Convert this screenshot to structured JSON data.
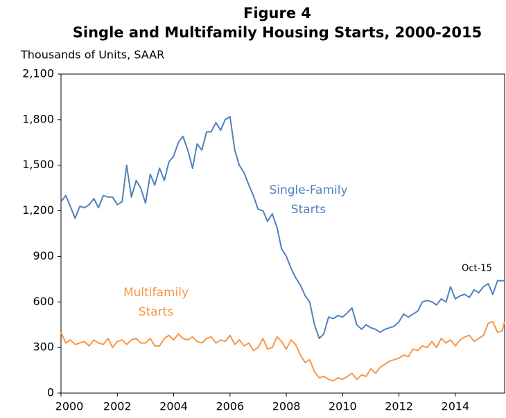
{
  "chart_data": {
    "type": "line",
    "title": "Figure 4",
    "subtitle": "Single and Multifamily Housing Starts, 2000-2015",
    "y_label": "Thousands of Units, SAAR",
    "x": [
      2000,
      2000.17,
      2000.33,
      2000.5,
      2000.67,
      2000.83,
      2001,
      2001.17,
      2001.33,
      2001.5,
      2001.67,
      2001.83,
      2002,
      2002.17,
      2002.33,
      2002.5,
      2002.67,
      2002.83,
      2003,
      2003.17,
      2003.33,
      2003.5,
      2003.67,
      2003.83,
      2004,
      2004.17,
      2004.33,
      2004.5,
      2004.67,
      2004.83,
      2005,
      2005.17,
      2005.33,
      2005.5,
      2005.67,
      2005.83,
      2006,
      2006.17,
      2006.33,
      2006.5,
      2006.67,
      2006.83,
      2007,
      2007.17,
      2007.33,
      2007.5,
      2007.67,
      2007.83,
      2008,
      2008.17,
      2008.33,
      2008.5,
      2008.67,
      2008.83,
      2009,
      2009.17,
      2009.33,
      2009.5,
      2009.67,
      2009.83,
      2010,
      2010.17,
      2010.33,
      2010.5,
      2010.67,
      2010.83,
      2011,
      2011.17,
      2011.33,
      2011.5,
      2011.67,
      2011.83,
      2012,
      2012.17,
      2012.33,
      2012.5,
      2012.67,
      2012.83,
      2013,
      2013.17,
      2013.33,
      2013.5,
      2013.67,
      2013.83,
      2014,
      2014.17,
      2014.33,
      2014.5,
      2014.67,
      2014.83,
      2015,
      2015.17,
      2015.33,
      2015.5,
      2015.67,
      2015.75
    ],
    "series": [
      {
        "name": "Single-Family Starts",
        "color": "#4f81bd",
        "values": [
          1260,
          1300,
          1230,
          1150,
          1230,
          1220,
          1240,
          1280,
          1220,
          1300,
          1290,
          1290,
          1240,
          1260,
          1500,
          1290,
          1400,
          1350,
          1250,
          1440,
          1370,
          1480,
          1400,
          1520,
          1560,
          1650,
          1690,
          1600,
          1480,
          1640,
          1600,
          1720,
          1720,
          1780,
          1730,
          1800,
          1820,
          1600,
          1500,
          1450,
          1370,
          1300,
          1210,
          1200,
          1130,
          1180,
          1090,
          950,
          900,
          820,
          760,
          710,
          640,
          600,
          450,
          360,
          390,
          500,
          490,
          510,
          500,
          530,
          560,
          450,
          420,
          450,
          430,
          420,
          400,
          420,
          430,
          440,
          470,
          520,
          500,
          520,
          540,
          600,
          610,
          600,
          580,
          620,
          600,
          700,
          620,
          640,
          650,
          630,
          680,
          660,
          700,
          720,
          650,
          740,
          740,
          740
        ]
      },
      {
        "name": "Multifamily Starts",
        "color": "#f79646",
        "values": [
          400,
          330,
          350,
          320,
          330,
          340,
          310,
          350,
          330,
          320,
          360,
          300,
          340,
          350,
          320,
          350,
          360,
          330,
          330,
          360,
          310,
          310,
          360,
          380,
          350,
          390,
          360,
          350,
          370,
          340,
          330,
          360,
          370,
          330,
          350,
          340,
          380,
          320,
          350,
          310,
          330,
          280,
          300,
          360,
          290,
          300,
          370,
          340,
          290,
          350,
          320,
          250,
          200,
          220,
          140,
          100,
          110,
          90,
          80,
          100,
          90,
          110,
          130,
          90,
          120,
          110,
          160,
          130,
          170,
          190,
          210,
          220,
          230,
          250,
          240,
          290,
          280,
          310,
          300,
          340,
          300,
          360,
          330,
          350,
          310,
          350,
          370,
          380,
          340,
          360,
          380,
          460,
          470,
          400,
          410,
          470
        ]
      }
    ],
    "annotations": [
      {
        "lines": [
          "Single-Family",
          "Starts"
        ]
      },
      {
        "lines": [
          "Multifamily",
          "Starts"
        ]
      },
      {
        "lines": [
          "Oct-15"
        ]
      }
    ],
    "xlim": [
      2000,
      2015.75
    ],
    "xticks": [
      2000,
      2002,
      2004,
      2006,
      2008,
      2010,
      2012,
      2014
    ],
    "ylim": [
      0,
      2100
    ],
    "yticks": [
      0,
      300,
      600,
      900,
      {
        "value": 1200,
        "label": "1,200"
      },
      {
        "value": 1500,
        "label": "1,500"
      },
      {
        "value": 1800,
        "label": "1,800"
      },
      {
        "value": 2100,
        "label": "2,100"
      }
    ],
    "grid": false
  }
}
